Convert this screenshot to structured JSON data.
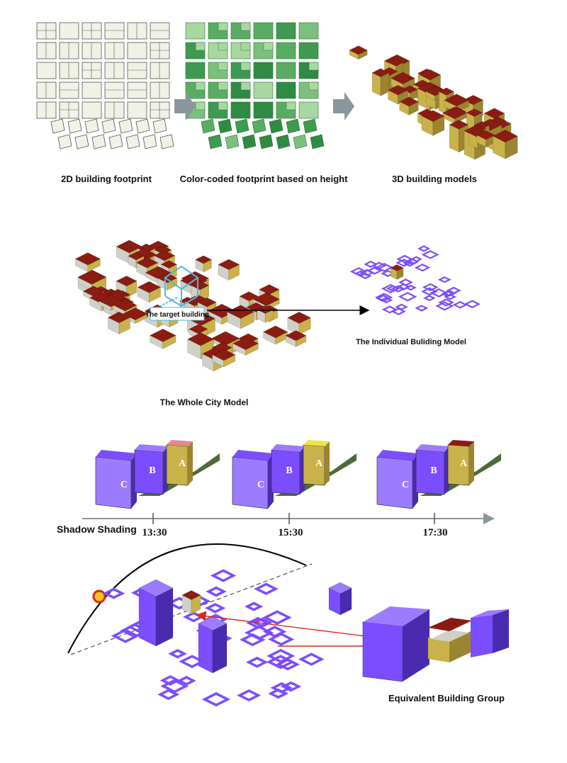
{
  "panel1": {
    "captions": [
      "2D building footprint",
      "Color-coded footprint based on height",
      "3D building models"
    ]
  },
  "panel2": {
    "target_label": "The target building",
    "individual_label": "The Individual Buliding Model",
    "city_label": "The Whole City Model"
  },
  "panel3": {
    "axis_label": "Shadow Shading",
    "times": [
      "13:30",
      "15:30",
      "17:30"
    ],
    "building_letters": [
      "C",
      "B",
      "A"
    ]
  },
  "panel4": {
    "group_label": "Equivalent Building Group"
  },
  "colors": {
    "roof": "#8a1c12",
    "wall": "#c9b24a",
    "wall_dark": "#9c8530",
    "footprint_fill": "#eef3e6",
    "footprint_stroke": "#555555",
    "green_dark": "#3e9a50",
    "green_light": "#a8d8a0",
    "purple": "#7c4dff",
    "purple_dark": "#4a2bb0",
    "purple_light": "#9d7bff",
    "arrow_gray": "#8a969c",
    "sun": "#f2c318",
    "sun_ring": "#d32a1a",
    "ground": "#4f6a3a",
    "highlight": "#4fb9d8"
  }
}
